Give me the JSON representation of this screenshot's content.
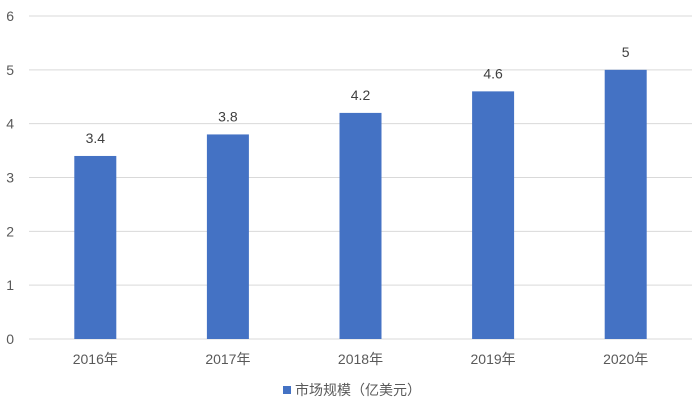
{
  "chart_data": {
    "type": "bar",
    "categories": [
      "2016年",
      "2017年",
      "2018年",
      "2019年",
      "2020年"
    ],
    "series": [
      {
        "name": "市场规模（亿美元）",
        "values": [
          3.4,
          3.8,
          4.2,
          4.6,
          5
        ],
        "labels": [
          "3.4",
          "3.8",
          "4.2",
          "4.6",
          "5"
        ],
        "color": "#4472c4"
      }
    ],
    "ylim": [
      0,
      6
    ],
    "yticks": [
      "0",
      "1",
      "2",
      "3",
      "4",
      "5",
      "6"
    ],
    "grid": true,
    "legend_position": "bottom"
  }
}
